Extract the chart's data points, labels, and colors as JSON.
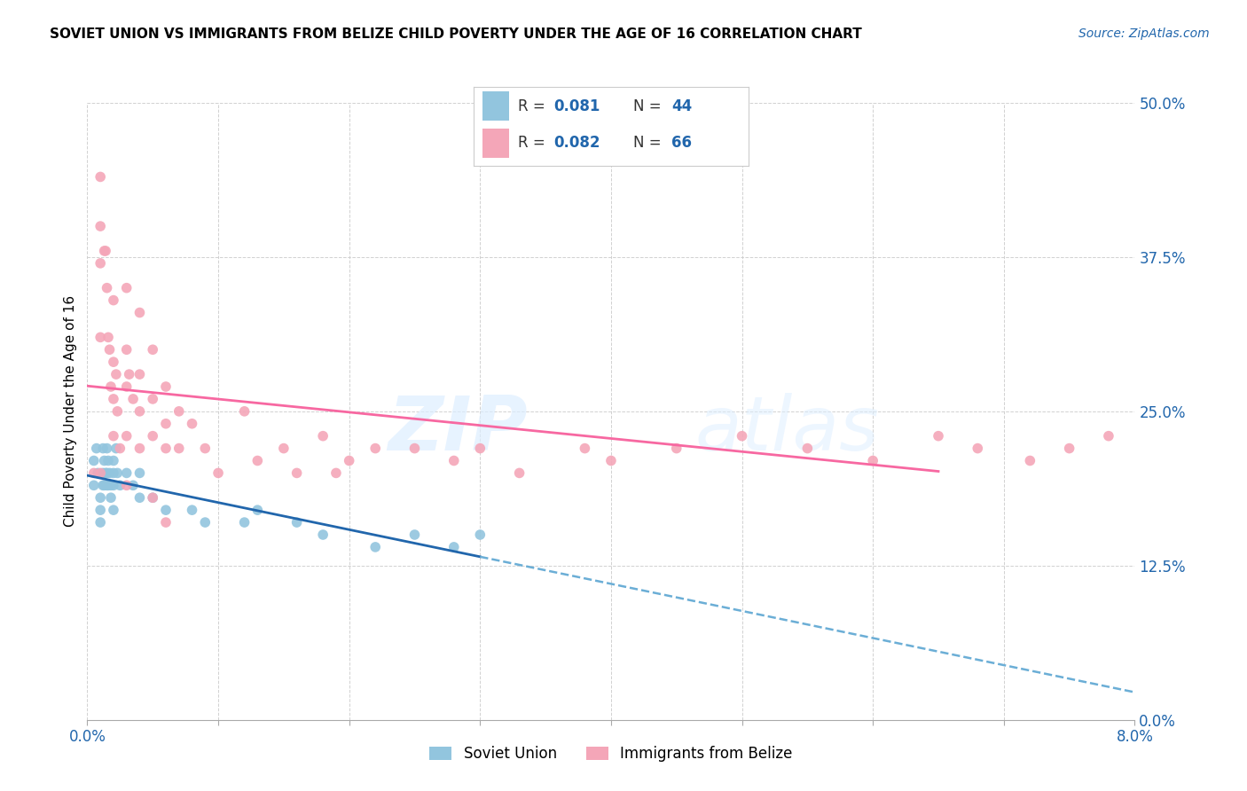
{
  "title": "SOVIET UNION VS IMMIGRANTS FROM BELIZE CHILD POVERTY UNDER THE AGE OF 16 CORRELATION CHART",
  "source": "Source: ZipAtlas.com",
  "ylabel": "Child Poverty Under the Age of 16",
  "legend_label1": "Soviet Union",
  "legend_label2": "Immigrants from Belize",
  "legend_r1": "0.081",
  "legend_n1": "44",
  "legend_r2": "0.082",
  "legend_n2": "66",
  "color_blue": "#92c5de",
  "color_pink": "#f4a6b8",
  "color_blue_line": "#2166ac",
  "color_pink_line": "#f768a1",
  "color_dash": "#6baed6",
  "watermark_zip": "ZIP",
  "watermark_atlas": "atlas",
  "xlim": [
    0.0,
    0.08
  ],
  "ylim": [
    0.0,
    0.5
  ],
  "ytick_vals": [
    0.0,
    0.125,
    0.25,
    0.375,
    0.5
  ],
  "ytick_labels": [
    "0.0%",
    "12.5%",
    "25.0%",
    "37.5%",
    "50.0%"
  ],
  "xtick_vals": [
    0.0,
    0.01,
    0.02,
    0.03,
    0.04,
    0.05,
    0.06,
    0.07,
    0.08
  ],
  "soviet_x": [
    0.0005,
    0.0005,
    0.0007,
    0.0008,
    0.001,
    0.001,
    0.001,
    0.0012,
    0.0012,
    0.0012,
    0.0013,
    0.0013,
    0.0014,
    0.0015,
    0.0015,
    0.0015,
    0.0016,
    0.0016,
    0.0017,
    0.0018,
    0.0018,
    0.002,
    0.002,
    0.002,
    0.002,
    0.0022,
    0.0023,
    0.0025,
    0.003,
    0.0035,
    0.004,
    0.004,
    0.005,
    0.006,
    0.008,
    0.009,
    0.012,
    0.013,
    0.016,
    0.018,
    0.022,
    0.025,
    0.028,
    0.03
  ],
  "soviet_y": [
    0.21,
    0.19,
    0.22,
    0.2,
    0.18,
    0.17,
    0.16,
    0.22,
    0.2,
    0.19,
    0.21,
    0.19,
    0.2,
    0.22,
    0.2,
    0.19,
    0.21,
    0.19,
    0.2,
    0.19,
    0.18,
    0.21,
    0.2,
    0.19,
    0.17,
    0.22,
    0.2,
    0.19,
    0.2,
    0.19,
    0.2,
    0.18,
    0.18,
    0.17,
    0.17,
    0.16,
    0.16,
    0.17,
    0.16,
    0.15,
    0.14,
    0.15,
    0.14,
    0.15
  ],
  "belize_x": [
    0.0005,
    0.001,
    0.001,
    0.001,
    0.001,
    0.001,
    0.0013,
    0.0014,
    0.0015,
    0.0016,
    0.0017,
    0.0018,
    0.002,
    0.002,
    0.002,
    0.002,
    0.0022,
    0.0023,
    0.0025,
    0.003,
    0.003,
    0.003,
    0.003,
    0.003,
    0.0032,
    0.0035,
    0.004,
    0.004,
    0.004,
    0.004,
    0.005,
    0.005,
    0.005,
    0.005,
    0.006,
    0.006,
    0.006,
    0.006,
    0.007,
    0.007,
    0.008,
    0.009,
    0.01,
    0.012,
    0.013,
    0.015,
    0.016,
    0.018,
    0.019,
    0.02,
    0.022,
    0.025,
    0.028,
    0.03,
    0.033,
    0.038,
    0.04,
    0.045,
    0.05,
    0.055,
    0.06,
    0.065,
    0.068,
    0.072,
    0.075,
    0.078
  ],
  "belize_y": [
    0.2,
    0.44,
    0.4,
    0.37,
    0.31,
    0.2,
    0.38,
    0.38,
    0.35,
    0.31,
    0.3,
    0.27,
    0.34,
    0.29,
    0.26,
    0.23,
    0.28,
    0.25,
    0.22,
    0.35,
    0.3,
    0.27,
    0.23,
    0.19,
    0.28,
    0.26,
    0.33,
    0.28,
    0.25,
    0.22,
    0.3,
    0.26,
    0.23,
    0.18,
    0.27,
    0.24,
    0.22,
    0.16,
    0.25,
    0.22,
    0.24,
    0.22,
    0.2,
    0.25,
    0.21,
    0.22,
    0.2,
    0.23,
    0.2,
    0.21,
    0.22,
    0.22,
    0.21,
    0.22,
    0.2,
    0.22,
    0.21,
    0.22,
    0.23,
    0.22,
    0.21,
    0.23,
    0.22,
    0.21,
    0.22,
    0.23
  ]
}
